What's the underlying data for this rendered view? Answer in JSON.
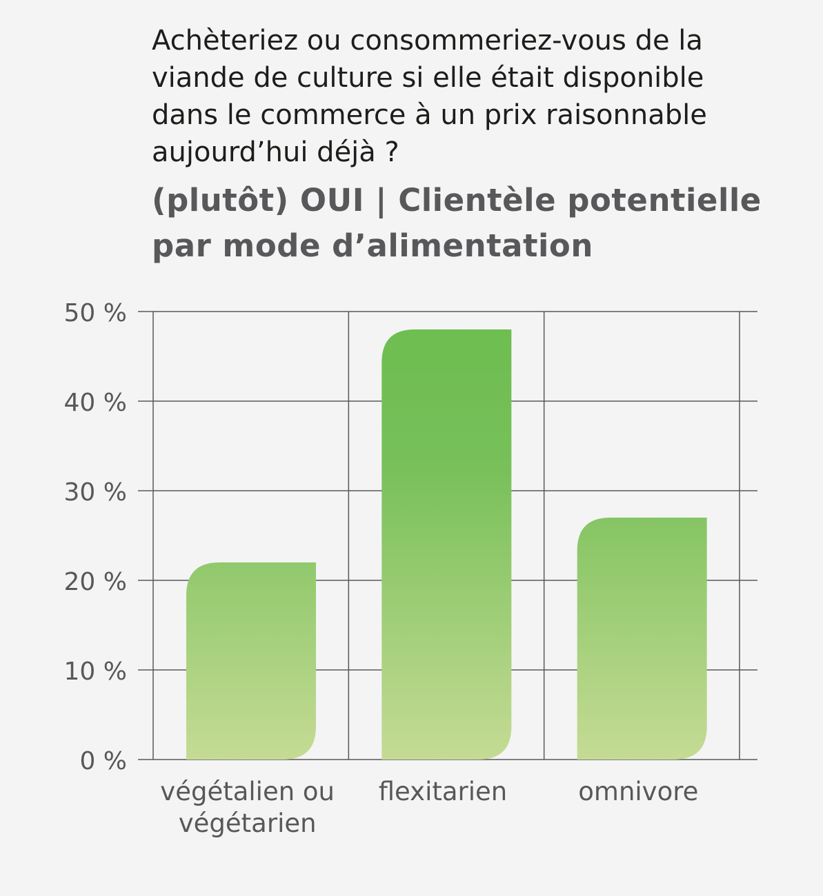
{
  "header": {
    "question": "Achèteriez ou consommeriez-vous de la viande de culture si elle était disponible dans le commerce à un prix raisonnable aujourd’hui déjà ?",
    "subtitle": "(plutôt) OUI | Clientèle potentielle par mode d’alimentation"
  },
  "chart_data": {
    "type": "bar",
    "title": "(plutôt) OUI | Clientèle potentielle par mode d’alimentation",
    "categories": [
      "végétalien ou végétarien",
      "flexitarien",
      "omnivore"
    ],
    "category_lines": [
      [
        "végétalien ou",
        "végétarien"
      ],
      [
        "flexitarien"
      ],
      [
        "omnivore"
      ]
    ],
    "values": [
      22,
      48,
      27
    ],
    "unit": "%",
    "ylim": [
      0,
      50
    ],
    "yticks": [
      0,
      10,
      20,
      30,
      40,
      50
    ],
    "ytick_labels": [
      "0 %",
      "10 %",
      "20 %",
      "30 %",
      "40 %",
      "50 %"
    ],
    "xlabel": "",
    "ylabel": "",
    "grid": true,
    "colors": {
      "bar_top": "#6cbd4f",
      "bar_bottom": "#c5db94",
      "grid": "#58585a",
      "text": "#58585a"
    }
  }
}
